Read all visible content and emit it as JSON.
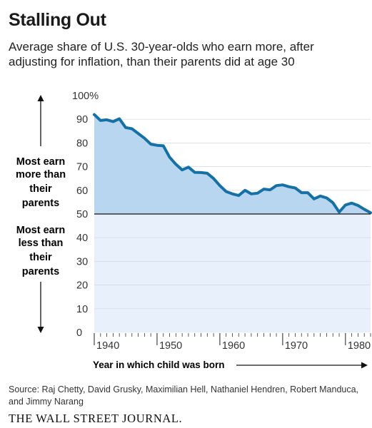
{
  "title": "Stalling Out",
  "subtitle": "Average share of U.S. 30-year-olds who earn more, after adjusting for inflation, than their parents did at age 30",
  "source": "Source:  Raj Chetty, David Grusky, Maximilian Hell, Nathaniel Hendren, Robert Manduca, and Jimmy Narang",
  "brand": "THE WALL STREET JOURNAL.",
  "colors": {
    "area": "#b9d6f0",
    "line": "#1570a6",
    "lower_bg": "#e8f0fb"
  },
  "chart_data": {
    "type": "area",
    "xlabel": "Year in which child was born",
    "ylim": [
      0,
      100
    ],
    "xlim": [
      1940,
      1984
    ],
    "baseline": 50,
    "yticks": [
      {
        "value": 0,
        "label": "0"
      },
      {
        "value": 10,
        "label": "10"
      },
      {
        "value": 20,
        "label": "20"
      },
      {
        "value": 30,
        "label": "30"
      },
      {
        "value": 40,
        "label": "40"
      },
      {
        "value": 50,
        "label": "50"
      },
      {
        "value": 60,
        "label": "60"
      },
      {
        "value": 70,
        "label": "70"
      },
      {
        "value": 80,
        "label": "80"
      },
      {
        "value": 90,
        "label": "90"
      },
      {
        "value": 100,
        "label": "100%"
      }
    ],
    "xtick_labels": [
      {
        "value": 1940,
        "label": "1940"
      },
      {
        "value": 1950,
        "label": "1950"
      },
      {
        "value": 1960,
        "label": "1960"
      },
      {
        "value": 1970,
        "label": "1970"
      },
      {
        "value": 1980,
        "label": "1980"
      }
    ],
    "above_label": [
      "Most earn",
      "more than",
      "their",
      "parents"
    ],
    "below_label": [
      "Most earn",
      "less than",
      "their",
      "parents"
    ],
    "x": [
      1940,
      1941,
      1942,
      1943,
      1944,
      1945,
      1946,
      1947,
      1948,
      1949,
      1950,
      1951,
      1952,
      1953,
      1954,
      1955,
      1956,
      1957,
      1958,
      1959,
      1960,
      1961,
      1962,
      1963,
      1964,
      1965,
      1966,
      1967,
      1968,
      1969,
      1970,
      1971,
      1972,
      1973,
      1974,
      1975,
      1976,
      1977,
      1978,
      1979,
      1980,
      1981,
      1982,
      1983,
      1984
    ],
    "values": [
      92,
      89.5,
      89.8,
      89,
      90.2,
      86.5,
      86,
      84,
      82,
      79.5,
      79,
      78.8,
      74,
      71,
      68.6,
      69.8,
      67.6,
      67.5,
      67.2,
      65,
      62,
      59.5,
      58.5,
      57.8,
      60,
      58.5,
      58.8,
      60.5,
      60.2,
      62,
      62.3,
      61.5,
      61,
      59,
      59,
      56.4,
      57.6,
      56.8,
      54.8,
      50.8,
      53.8,
      54.6,
      53.6,
      52,
      50.5
    ]
  }
}
